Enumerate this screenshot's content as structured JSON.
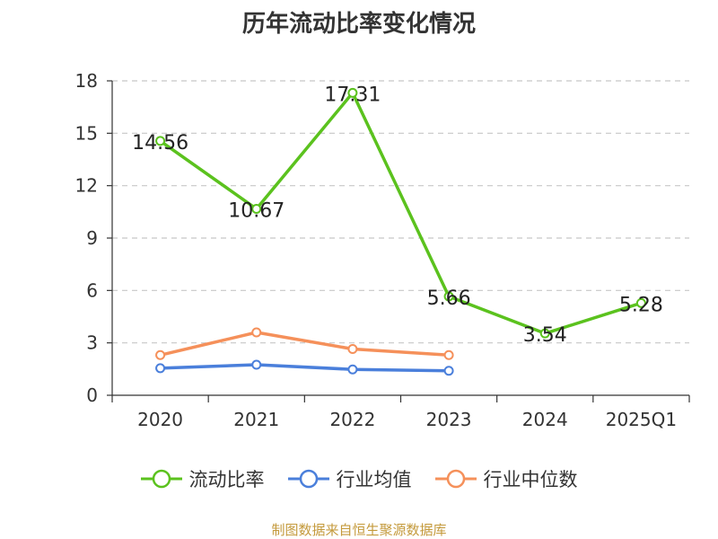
{
  "title": "历年流动比率变化情况",
  "source": "制图数据来自恒生聚源数据库",
  "colors": {
    "current_ratio": "#5bc21e",
    "industry_avg": "#4a7fdb",
    "industry_median": "#f5905a",
    "axis": "#333333",
    "grid": "#c8c8c8"
  },
  "chart_data": {
    "type": "line",
    "title": "历年流动比率变化情况",
    "categories": [
      "2020",
      "2021",
      "2022",
      "2023",
      "2024",
      "2025Q1"
    ],
    "ylim": [
      0,
      18
    ],
    "yticks": [
      0,
      3,
      6,
      9,
      12,
      15,
      18
    ],
    "grid": "horizontal dashed",
    "legend_position": "bottom",
    "series": [
      {
        "name": "流动比率",
        "color_key": "current_ratio",
        "values": [
          14.56,
          10.67,
          17.31,
          5.66,
          3.54,
          5.28
        ],
        "labels": [
          "14.56",
          "10.67",
          "17.31",
          "5.66",
          "3.54",
          "5.28"
        ]
      },
      {
        "name": "行业均值",
        "color_key": "industry_avg",
        "values": [
          1.55,
          1.75,
          1.48,
          1.4,
          null,
          null
        ]
      },
      {
        "name": "行业中位数",
        "color_key": "industry_median",
        "values": [
          2.3,
          3.6,
          2.65,
          2.3,
          null,
          null
        ]
      }
    ]
  }
}
